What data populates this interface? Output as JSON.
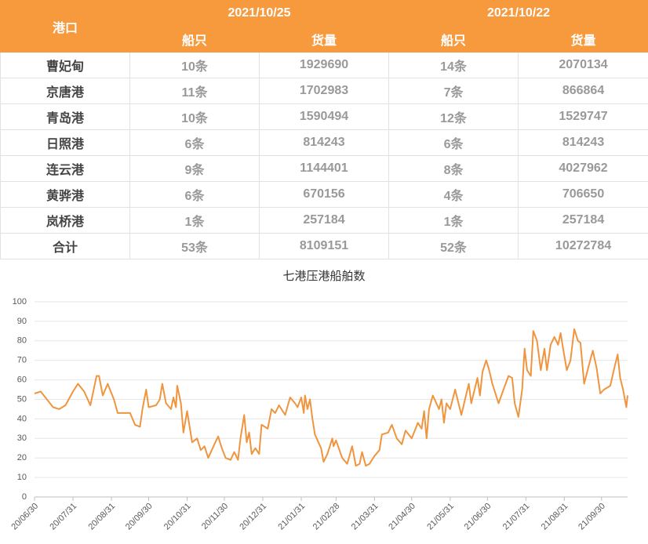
{
  "table": {
    "header": {
      "port": "港口",
      "dates": [
        "2021/10/25",
        "2021/10/22"
      ],
      "subheaders": [
        "船只",
        "货量",
        "船只",
        "货量"
      ]
    },
    "rows": [
      [
        "曹妃甸",
        "10条",
        1929690,
        "14条",
        2070134
      ],
      [
        "京唐港",
        "11条",
        1702983,
        "7条",
        866864
      ],
      [
        "青岛港",
        "10条",
        1590494,
        "12条",
        1529747
      ],
      [
        "日照港",
        "6条",
        814243,
        "6条",
        814243
      ],
      [
        "连云港",
        "9条",
        1144401,
        "8条",
        4027962
      ],
      [
        "黄骅港",
        "6条",
        670156,
        "4条",
        706650
      ],
      [
        "岚桥港",
        "1条",
        257184,
        "1条",
        257184
      ],
      [
        "合计",
        "53条",
        8109151,
        "52条",
        10272784
      ]
    ]
  },
  "chart_data": {
    "type": "line",
    "title": "七港压港船舶数",
    "color": "#f0953f",
    "x": [
      "20/06/30",
      "20/07/05",
      "20/07/10",
      "20/07/15",
      "20/07/20",
      "20/07/25",
      "20/07/31",
      "20/08/04",
      "20/08/09",
      "20/08/14",
      "20/08/19",
      "20/08/21",
      "20/08/24",
      "20/08/28",
      "20/09/02",
      "20/09/05",
      "20/09/15",
      "20/09/19",
      "20/09/23",
      "20/09/25",
      "20/09/28",
      "20/09/30",
      "20/10/06",
      "20/10/09",
      "20/10/11",
      "20/10/14",
      "20/10/18",
      "20/10/20",
      "20/10/22",
      "20/10/23",
      "20/10/26",
      "20/10/28",
      "20/10/31",
      "20/11/04",
      "20/11/08",
      "20/11/11",
      "20/11/14",
      "20/11/17",
      "20/11/22",
      "20/11/25",
      "20/11/28",
      "20/12/01",
      "20/12/05",
      "20/12/08",
      "20/12/11",
      "20/12/13",
      "20/12/16",
      "20/12/18",
      "20/12/20",
      "20/12/22",
      "20/12/25",
      "20/12/28",
      "20/12/30",
      "21/01/04",
      "21/01/07",
      "21/01/10",
      "21/01/13",
      "21/01/18",
      "21/01/22",
      "21/01/26",
      "21/01/28",
      "21/01/31",
      "21/02/02",
      "21/02/03",
      "21/02/05",
      "21/02/07",
      "21/02/09",
      "21/02/11",
      "21/02/16",
      "21/02/18",
      "21/02/21",
      "21/02/25",
      "21/02/26",
      "21/02/28",
      "21/03/05",
      "21/03/09",
      "21/03/13",
      "21/03/16",
      "21/03/19",
      "21/03/21",
      "21/03/24",
      "21/03/27",
      "21/03/31",
      "21/04/04",
      "21/04/06",
      "21/04/11",
      "21/04/14",
      "21/04/18",
      "21/04/22",
      "21/04/25",
      "21/04/30",
      "21/05/05",
      "21/05/08",
      "21/05/10",
      "21/05/12",
      "21/05/14",
      "21/05/17",
      "21/05/22",
      "21/05/24",
      "21/05/26",
      "21/05/28",
      "21/05/31",
      "21/06/04",
      "21/06/09",
      "21/06/12",
      "21/06/15",
      "21/06/17",
      "21/06/22",
      "21/06/24",
      "21/06/26",
      "21/06/29",
      "21/07/01",
      "21/07/04",
      "21/07/09",
      "21/07/13",
      "21/07/17",
      "21/07/20",
      "21/07/22",
      "21/07/25",
      "21/07/28",
      "21/07/30",
      "21/08/01",
      "21/08/04",
      "21/08/06",
      "21/08/09",
      "21/08/12",
      "21/08/15",
      "21/08/17",
      "21/08/20",
      "21/08/23",
      "21/08/26",
      "21/08/28",
      "21/08/30",
      "21/09/02",
      "21/09/05",
      "21/09/08",
      "21/09/11",
      "21/09/13",
      "21/09/16",
      "21/09/20",
      "21/09/23",
      "21/09/26",
      "21/09/29",
      "21/10/02",
      "21/10/07",
      "21/10/11",
      "21/10/13",
      "21/10/15",
      "21/10/17",
      "21/10/20",
      "21/10/21"
    ],
    "values": [
      53,
      54,
      50,
      46,
      45,
      47,
      54,
      58,
      54,
      47,
      62,
      62,
      52,
      58,
      50,
      43,
      43,
      37,
      36,
      45,
      55,
      46,
      47,
      50,
      58,
      48,
      45,
      51,
      46,
      57,
      48,
      33,
      44,
      28,
      30,
      24,
      26,
      20,
      27,
      31,
      25,
      20,
      19,
      23,
      19,
      30,
      42,
      28,
      33,
      22,
      25,
      22,
      37,
      35,
      45,
      43,
      47,
      42,
      51,
      48,
      46,
      51,
      43,
      52,
      45,
      50,
      40,
      32,
      25,
      18,
      22,
      30,
      26,
      29,
      20,
      17,
      26,
      16,
      17,
      23,
      16,
      17,
      21,
      24,
      32,
      33,
      37,
      30,
      27,
      34,
      30,
      38,
      35,
      44,
      30,
      45,
      52,
      45,
      50,
      38,
      48,
      45,
      55,
      42,
      50,
      58,
      48,
      61,
      52,
      64,
      70,
      66,
      58,
      48,
      55,
      62,
      61,
      48,
      41,
      55,
      76,
      65,
      62,
      85,
      80,
      65,
      76,
      65,
      78,
      82,
      78,
      84,
      76,
      65,
      70,
      86,
      80,
      79,
      58,
      68,
      75,
      66,
      53,
      55,
      57,
      68,
      73,
      61,
      56,
      46,
      52
    ],
    "xlim": [
      "20/06/30",
      "21/10/21"
    ],
    "xticks": [
      "20/06/30",
      "20/07/31",
      "20/08/31",
      "20/09/30",
      "20/10/31",
      "20/11/30",
      "20/12/31",
      "21/01/31",
      "21/02/28",
      "21/03/31",
      "21/04/30",
      "21/05/31",
      "21/06/30",
      "21/07/31",
      "21/08/31",
      "21/09/30"
    ],
    "ylim": [
      0,
      100
    ],
    "yticks": [
      0,
      10,
      20,
      30,
      40,
      50,
      60,
      70,
      80,
      90,
      100
    ],
    "grid": true
  }
}
